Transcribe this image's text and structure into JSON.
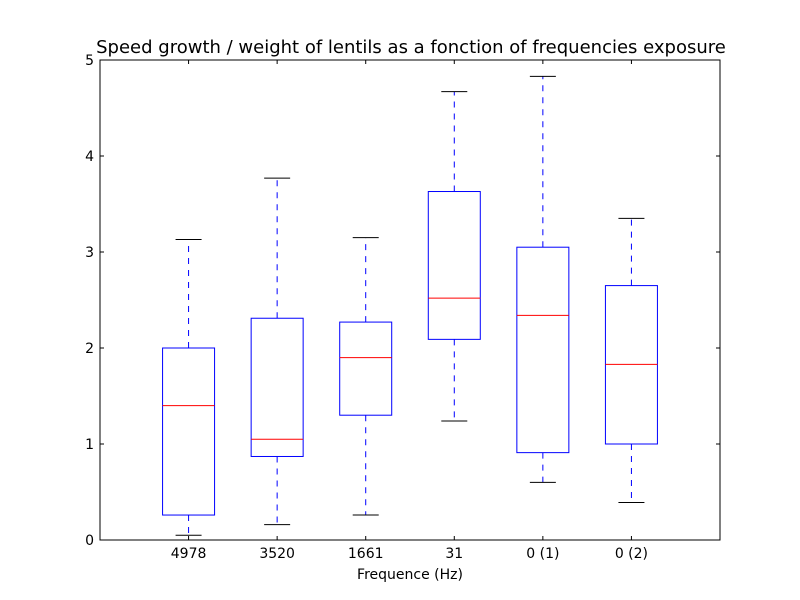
{
  "chart_data": {
    "type": "box",
    "title": "Speed growth / weight of lentils as a fonction of frequencies exposure",
    "xlabel": "Frequence (Hz)",
    "ylabel": "",
    "ylim": [
      0,
      5
    ],
    "yticks": [
      "0",
      "1",
      "2",
      "3",
      "4",
      "5"
    ],
    "grid": false,
    "colors": {
      "box": "#0000ff",
      "median": "#ff0000",
      "whisker": "#0000ff",
      "cap": "#000000",
      "axes": "#000000"
    },
    "categories": [
      "4978",
      "3520",
      "1661",
      "31",
      "0 (1)",
      "0 (2)"
    ],
    "boxes": [
      {
        "label": "4978",
        "whisker_low": 0.05,
        "q1": 0.26,
        "median": 1.4,
        "q3": 2.0,
        "whisker_high": 3.13
      },
      {
        "label": "3520",
        "whisker_low": 0.16,
        "q1": 0.87,
        "median": 1.05,
        "q3": 2.31,
        "whisker_high": 3.77
      },
      {
        "label": "1661",
        "whisker_low": 0.26,
        "q1": 1.3,
        "median": 1.9,
        "q3": 2.27,
        "whisker_high": 3.15
      },
      {
        "label": "31",
        "whisker_low": 1.24,
        "q1": 2.09,
        "median": 2.52,
        "q3": 3.63,
        "whisker_high": 4.67
      },
      {
        "label": "0 (1)",
        "whisker_low": 0.6,
        "q1": 0.91,
        "median": 2.34,
        "q3": 3.05,
        "whisker_high": 4.83
      },
      {
        "label": "0 (2)",
        "whisker_low": 0.39,
        "q1": 1.0,
        "median": 1.83,
        "q3": 2.65,
        "whisker_high": 3.35
      }
    ]
  }
}
